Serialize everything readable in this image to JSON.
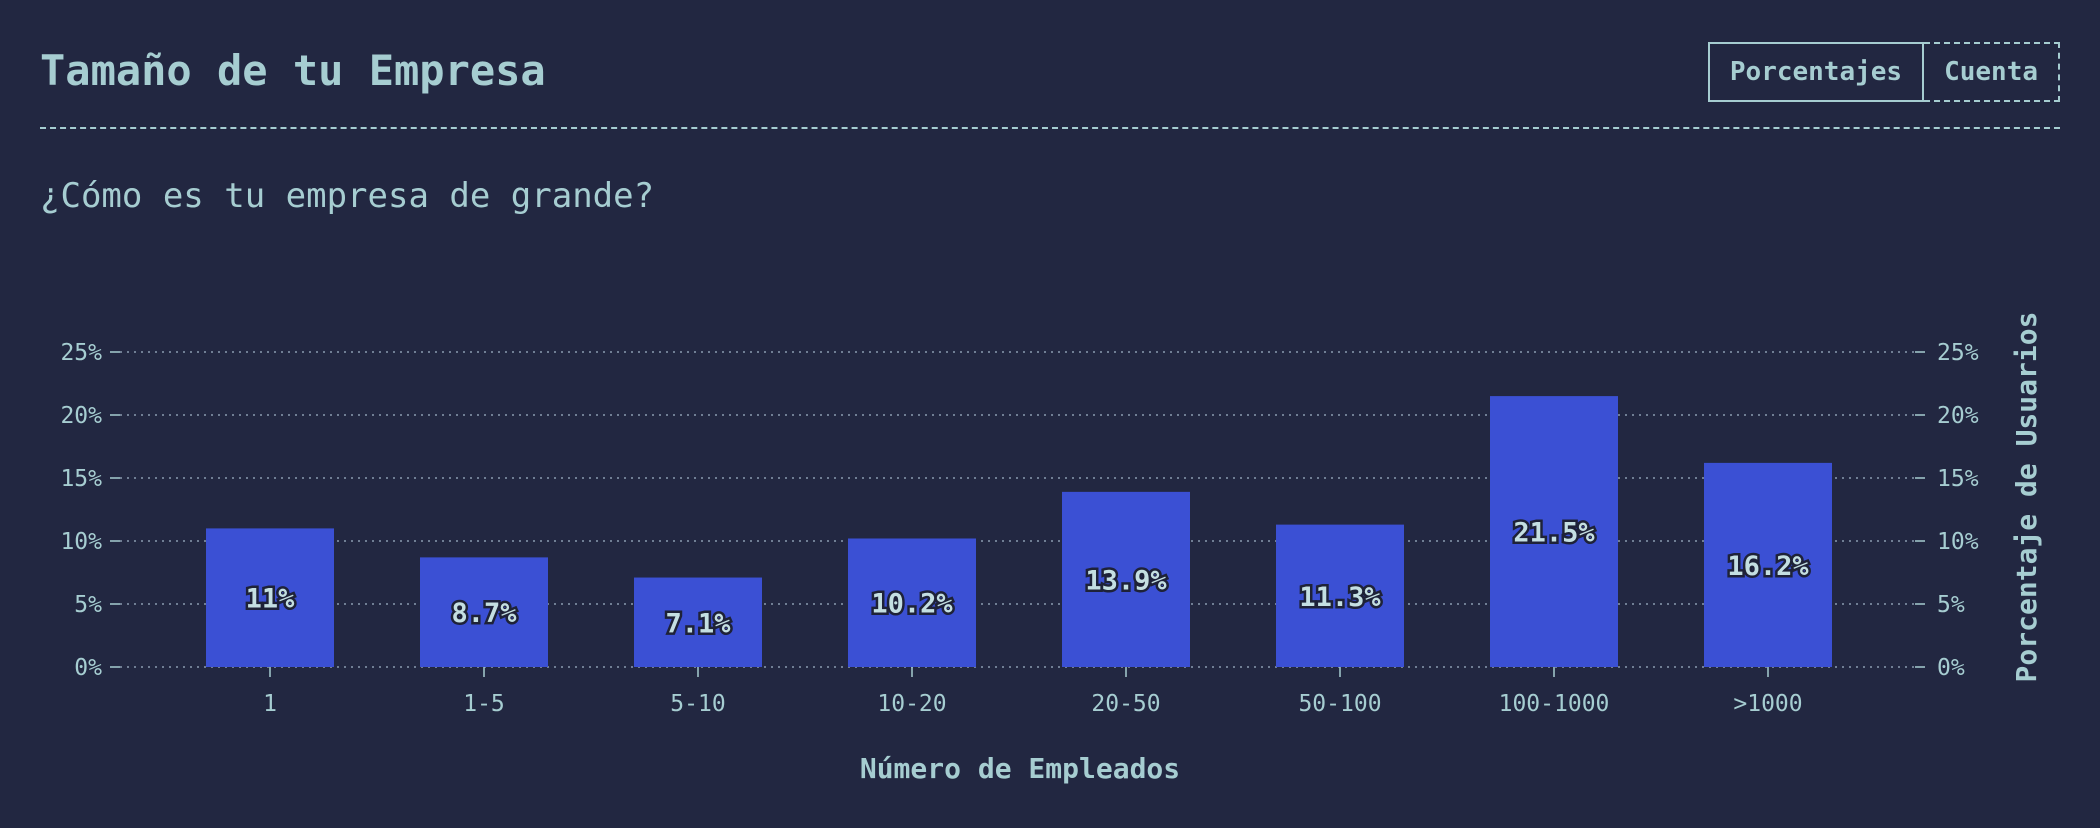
{
  "header": {
    "title": "Tamaño de tu Empresa",
    "toggle": {
      "percentages_label": "Porcentajes",
      "count_label": "Cuenta"
    }
  },
  "question": "¿Cómo es tu empresa de grande?",
  "colors": {
    "background": "#222741",
    "bar": "#3b50d4",
    "text": "#a6cdd1"
  },
  "chart_data": {
    "type": "bar",
    "categories": [
      "1",
      "1-5",
      "5-10",
      "10-20",
      "20-50",
      "50-100",
      "100-1000",
      ">1000"
    ],
    "values": [
      11,
      8.7,
      7.1,
      10.2,
      13.9,
      11.3,
      21.5,
      16.2
    ],
    "value_labels": [
      "11%",
      "8.7%",
      "7.1%",
      "10.2%",
      "13.9%",
      "11.3%",
      "21.5%",
      "16.2%"
    ],
    "xlabel": "Número de Empleados",
    "ylabel": "Porcentaje de Usuarios",
    "ylim": [
      0,
      25
    ],
    "yticks": [
      0,
      5,
      10,
      15,
      20,
      25
    ],
    "ytick_labels": [
      "0%",
      "5%",
      "10%",
      "15%",
      "20%",
      "25%"
    ],
    "grid": true,
    "y_axis_both_sides": true
  }
}
